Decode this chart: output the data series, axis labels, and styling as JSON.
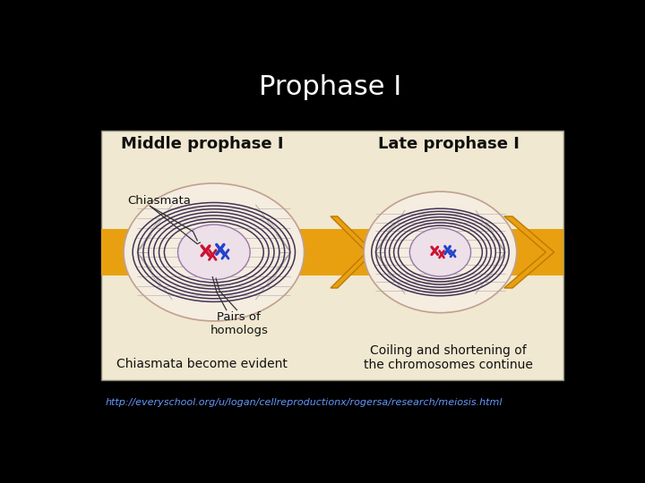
{
  "background_color": "#000000",
  "title": "Prophase I",
  "title_color": "#ffffff",
  "title_fontsize": 22,
  "title_fontweight": "normal",
  "url_text": "http://everyschool.org/u/logan/cellreproductionx/rogersa/research/meiosis.html",
  "url_color": "#6699ff",
  "url_fontsize": 8,
  "image_bg_color": "#f0e8d0",
  "arrow_color": "#e8a010",
  "label_middle": "Middle prophase I",
  "label_late": "Late prophase I",
  "label_chiasmata": "Chiasmata",
  "label_pairs": "Pairs of\nhomologs",
  "label_bottom_left": "Chiasmata become evident",
  "label_coiling": "Coiling and shortening of\nthe chromosomes continue"
}
